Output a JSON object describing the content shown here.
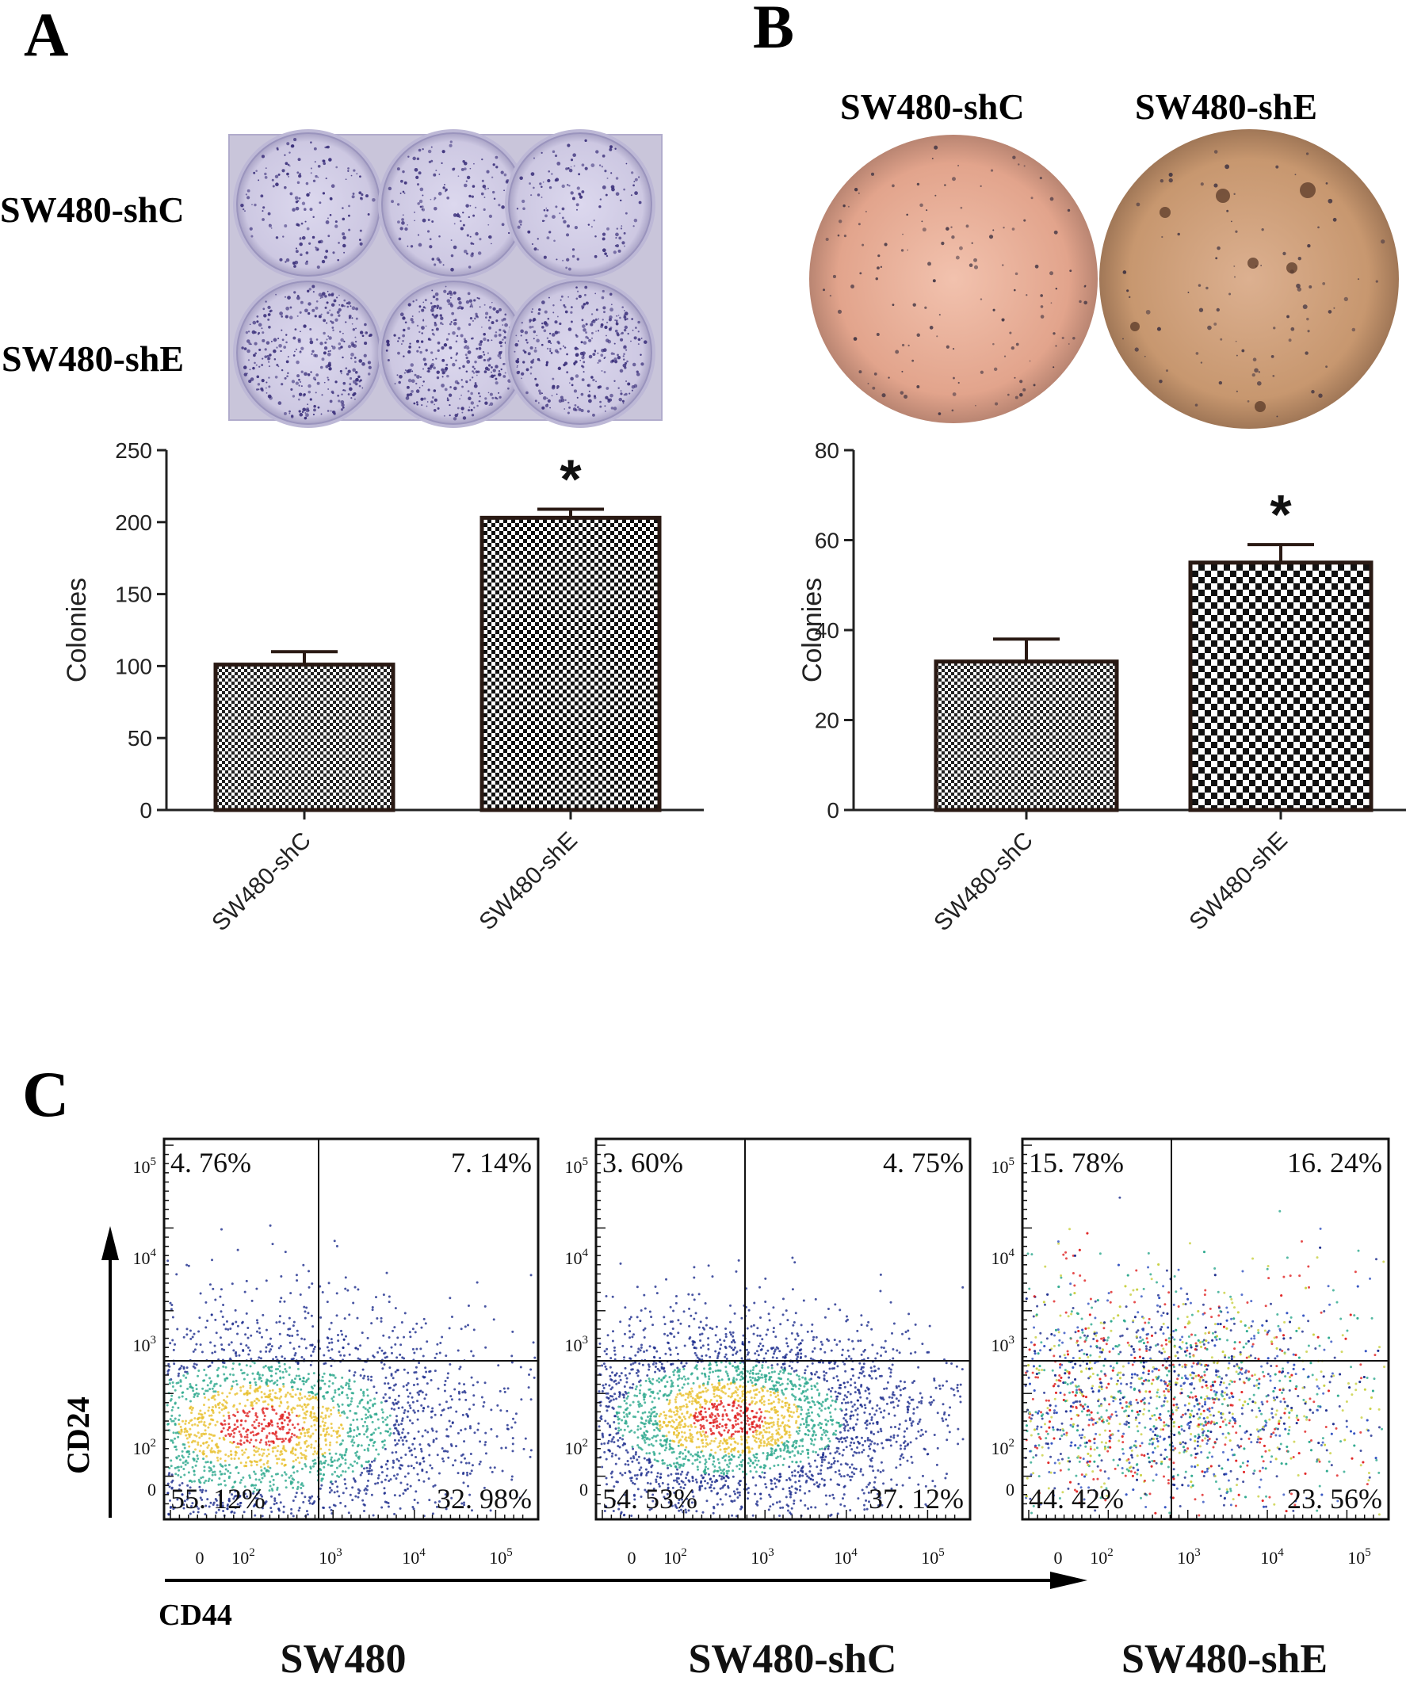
{
  "panels": {
    "A": {
      "letter": "A",
      "row_labels": [
        "SW480-shC",
        "SW480-shE"
      ]
    },
    "B": {
      "letter": "B",
      "column_labels": [
        "SW480-shC",
        "SW480-shE"
      ]
    },
    "C": {
      "letter": "C",
      "y_axis_label": "CD24",
      "x_axis_label": "CD44",
      "plots": [
        {
          "name": "SW480",
          "ul": "4. 76%",
          "ur": "7. 14%",
          "ll": "55. 12%",
          "lr": "32. 98%"
        },
        {
          "name": "SW480-shC",
          "ul": "3. 60%",
          "ur": "4. 75%",
          "ll": "54. 53%",
          "lr": "37. 12%"
        },
        {
          "name": "SW480-shE",
          "ul": "15. 78%",
          "ur": "16. 24%",
          "ll": "44. 42%",
          "lr": "23. 56%"
        }
      ],
      "axis_ticks": [
        "0",
        "10",
        "10",
        "10",
        "10"
      ],
      "axis_tick_exponents": [
        "",
        "2",
        "3",
        "4",
        "5"
      ]
    }
  },
  "chart_data": [
    {
      "type": "bar",
      "panel": "A",
      "categories": [
        "SW480-shC",
        "SW480-shE"
      ],
      "values": [
        101,
        203
      ],
      "errors": [
        9,
        6
      ],
      "significance": [
        "",
        "*"
      ],
      "ylabel": "Colonies",
      "ylim": [
        0,
        250
      ],
      "yticks": [
        0,
        50,
        100,
        150,
        200,
        250
      ]
    },
    {
      "type": "bar",
      "panel": "B",
      "categories": [
        "SW480-shC",
        "SW480-shE"
      ],
      "values": [
        33,
        55
      ],
      "errors": [
        5,
        4
      ],
      "significance": [
        "",
        "*"
      ],
      "ylabel": "Colonies",
      "ylim": [
        0,
        80
      ],
      "yticks": [
        0,
        20,
        40,
        60,
        80
      ]
    },
    {
      "type": "scatter",
      "panel": "C",
      "xlabel": "CD44",
      "ylabel": "CD24",
      "scale": "log",
      "series": [
        {
          "name": "SW480",
          "quadrants_percent": {
            "upper_left": 4.76,
            "upper_right": 7.14,
            "lower_left": 55.12,
            "lower_right": 32.98
          }
        },
        {
          "name": "SW480-shC",
          "quadrants_percent": {
            "upper_left": 3.6,
            "upper_right": 4.75,
            "lower_left": 54.53,
            "lower_right": 37.12
          }
        },
        {
          "name": "SW480-shE",
          "quadrants_percent": {
            "upper_left": 15.78,
            "upper_right": 16.24,
            "lower_left": 44.42,
            "lower_right": 23.56
          }
        }
      ]
    }
  ],
  "colors": {
    "plate_bg": "#d3cfe4",
    "colony": "#3a2f7a",
    "soft_agar_left": "#e5ad97",
    "soft_agar_right": "#c99b78",
    "bar_outline": "#2a1a14",
    "scatter_low": "#1a2a8c",
    "scatter_mid": "#2aa88c",
    "scatter_high": "#e02020"
  }
}
